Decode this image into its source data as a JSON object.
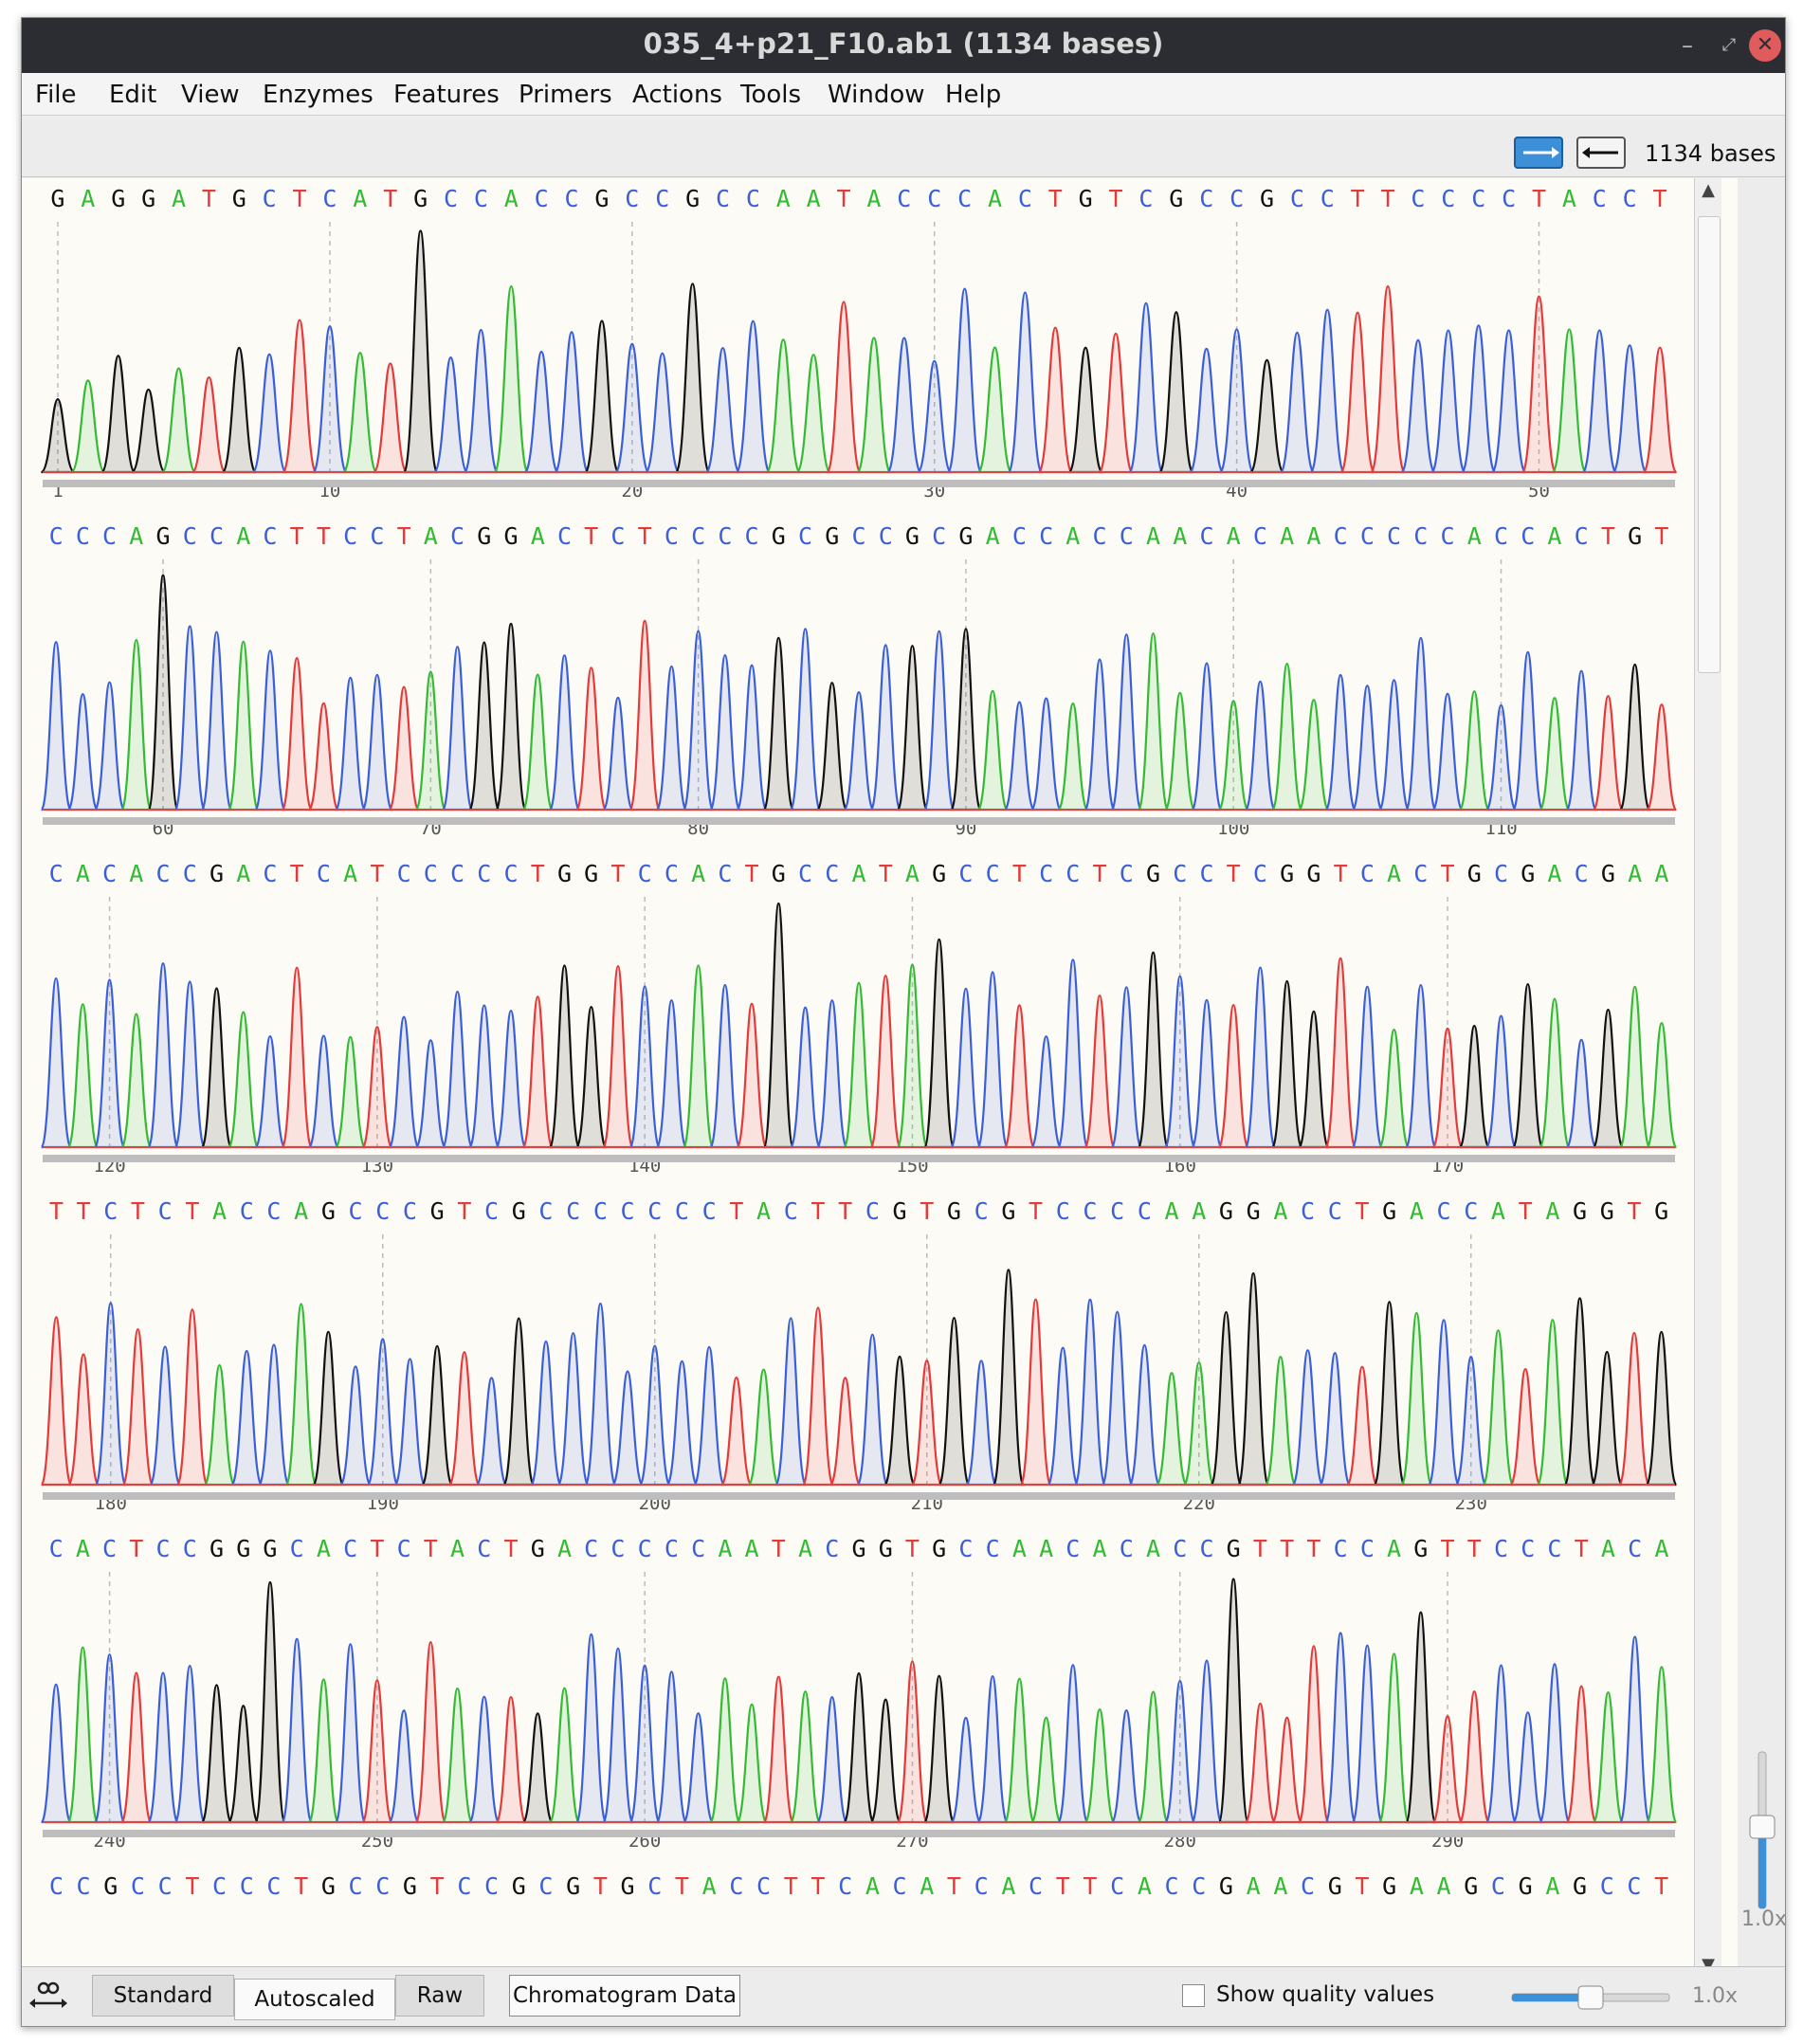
{
  "window": {
    "title": "035_4+p21_F10.ab1  (1134 bases)"
  },
  "menu": {
    "items": [
      "File",
      "Edit",
      "View",
      "Enzymes",
      "Features",
      "Primers",
      "Actions",
      "Tools",
      "Window",
      "Help"
    ]
  },
  "toolbar": {
    "forward_icon": "right-arrow-icon",
    "reverse_icon": "left-arrow-icon",
    "bases_label": "1134 bases"
  },
  "colors": {
    "A": "#33bb33",
    "C": "#3a5fd9",
    "G": "#111111",
    "T": "#e43a3a",
    "background": "#fdfbf5"
  },
  "rows": [
    {
      "sequence": "GAGGATGCTCATGCCACCGCCGCCAATACCCACTGTCGCCGCCTTCCCCTACCT",
      "tick_start": 1,
      "tick_labels": [
        "1",
        "10",
        "20",
        "30",
        "40",
        "50"
      ]
    },
    {
      "sequence": "CCCAGCCACTTCCTACGGACTCTCCCCGCGCCGCGACCACCAACACAACCCCCACCACTGT",
      "tick_start": 56,
      "tick_labels": [
        "60",
        "70",
        "80",
        "90",
        "100",
        "110"
      ]
    },
    {
      "sequence": "CACACCGACTCATCCCCCTGGTCCACTGCCATAGCCTCCTCGCCTCGGTCACTGCGACGAA",
      "tick_start": 118,
      "tick_labels": [
        "120",
        "130",
        "140",
        "150",
        "160",
        "170"
      ]
    },
    {
      "sequence": "TTCTCTACCAGCCCGTCGCCCCCCCTACTTCGTGCGTCCCCAAGGACCTGACCATAGGTG",
      "tick_start": 178,
      "tick_labels": [
        "180",
        "190",
        "200",
        "210",
        "220",
        "230"
      ]
    },
    {
      "sequence": "CACTCCGGGCACTCTACTGACCCCCAATACGGTGCCAACACACCGTTTCCAGTTCCCTACA",
      "tick_start": 238,
      "tick_labels": [
        "240",
        "250",
        "260",
        "270",
        "280",
        "290"
      ]
    },
    {
      "sequence": "CCGCCTCCCTGCCGTCCGCGTGCTACCTTCACATCACTTCACCGAACGTGAAGCGAGCCT",
      "tick_start": 299,
      "tick_labels": []
    }
  ],
  "zoom": {
    "side_label": "1.0x",
    "bottom_label": "1.0x"
  },
  "bottombar": {
    "link_icon": "link-arrows-icon",
    "tabs": [
      "Standard",
      "Autoscaled",
      "Raw"
    ],
    "chromatogram_button": "Chromatogram Data",
    "quality_label": "Show quality values"
  }
}
